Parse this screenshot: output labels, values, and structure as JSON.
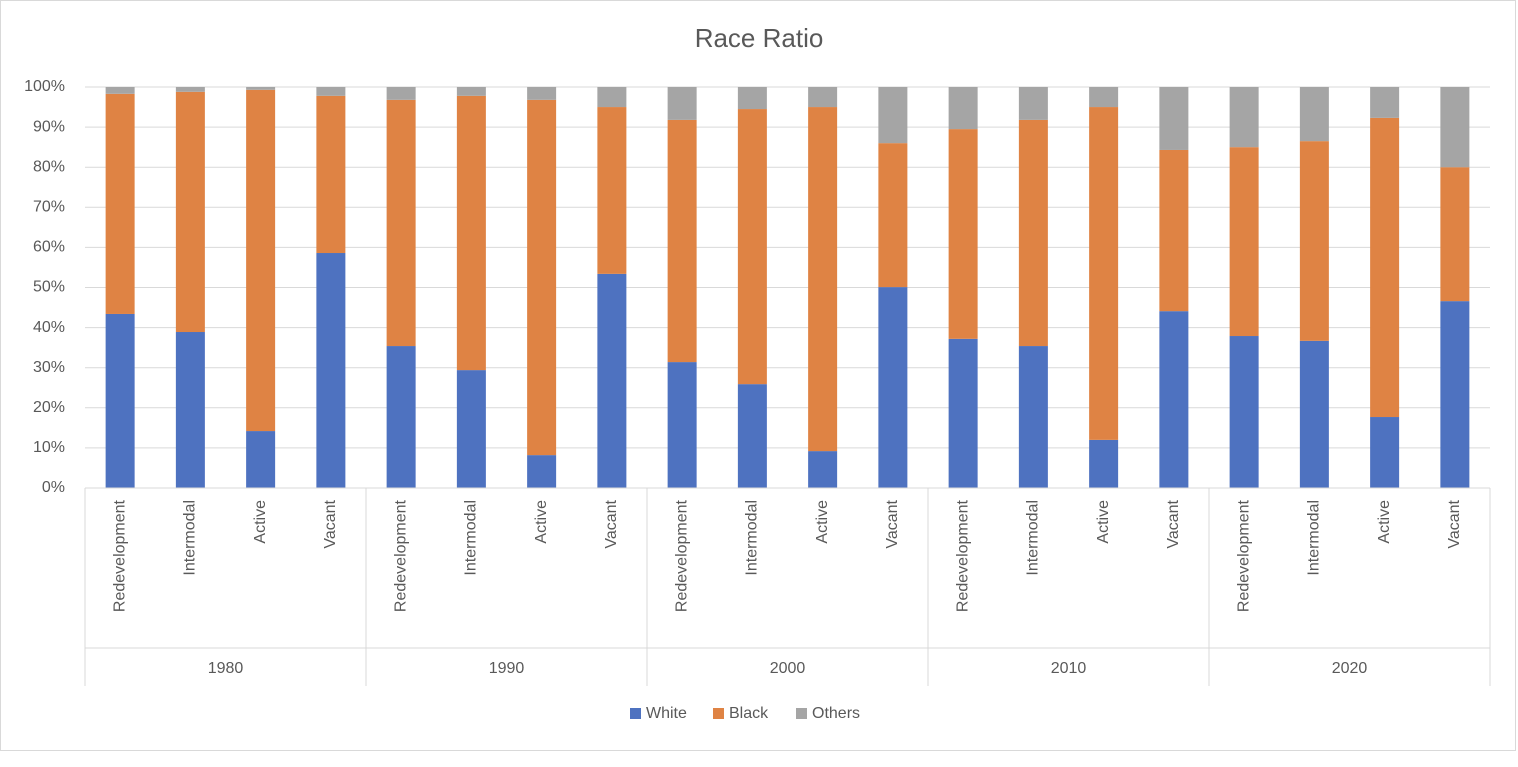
{
  "chart_data": {
    "type": "stacked_bar",
    "title": "Race Ratio",
    "categories": [
      "Redevelopment",
      "Intermodal",
      "Active",
      "Vacant",
      "Redevelopment",
      "Intermodal",
      "Active",
      "Vacant",
      "Redevelopment",
      "Intermodal",
      "Active",
      "Vacant",
      "Redevelopment",
      "Intermodal",
      "Active",
      "Vacant",
      "Redevelopment",
      "Intermodal",
      "Active",
      "Vacant"
    ],
    "groups": [
      "1980",
      "1990",
      "2000",
      "2010",
      "2020"
    ],
    "series": [
      {
        "name": "White",
        "color": "#4e72c0",
        "values": [
          43.4,
          38.9,
          14.2,
          58.6,
          35.4,
          29.4,
          8.2,
          53.4,
          31.4,
          25.9,
          9.2,
          50.1,
          37.2,
          35.4,
          12.0,
          44.1,
          37.9,
          36.7,
          17.7,
          46.6
        ]
      },
      {
        "name": "Black",
        "color": "#df8344",
        "values": [
          54.9,
          59.9,
          85.1,
          39.2,
          61.4,
          68.4,
          88.6,
          41.6,
          60.4,
          68.6,
          85.8,
          35.9,
          52.3,
          56.4,
          83.0,
          40.2,
          47.1,
          49.8,
          74.6,
          33.4
        ]
      },
      {
        "name": "Others",
        "color": "#a5a5a5",
        "values": [
          1.7,
          1.2,
          0.7,
          2.2,
          3.2,
          2.2,
          3.2,
          5.0,
          8.2,
          5.5,
          5.0,
          14.0,
          10.5,
          8.2,
          5.0,
          15.7,
          15.0,
          13.5,
          7.7,
          20.0
        ]
      }
    ],
    "ylim": [
      0,
      100
    ],
    "yticks": [
      {
        "value": 0,
        "label": "0%"
      },
      {
        "value": 10,
        "label": "10%"
      },
      {
        "value": 20,
        "label": "20%"
      },
      {
        "value": 30,
        "label": "30%"
      },
      {
        "value": 40,
        "label": "40%"
      },
      {
        "value": 50,
        "label": "50%"
      },
      {
        "value": 60,
        "label": "60%"
      },
      {
        "value": 70,
        "label": "70%"
      },
      {
        "value": 80,
        "label": "80%"
      },
      {
        "value": 90,
        "label": "90%"
      },
      {
        "value": 100,
        "label": "100%"
      }
    ],
    "grid": true,
    "legend": "bottom"
  }
}
